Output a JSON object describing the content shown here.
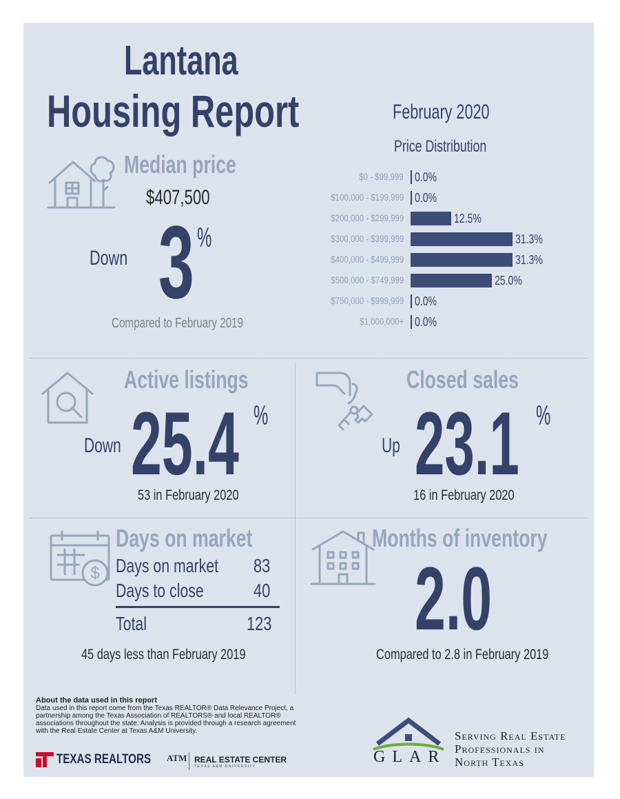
{
  "title": {
    "line1": "Lantana",
    "line2": "Housing Report"
  },
  "date": "February 2020",
  "median_price": {
    "header": "Median price",
    "value": "$407,500",
    "direction": "Down",
    "change": "3",
    "percent": "%",
    "comparison": "Compared to February 2019"
  },
  "chart_data": {
    "type": "bar",
    "title": "Price Distribution",
    "categories": [
      "$0 - $99,999",
      "$100,000 - $199,999",
      "$200,000 - $299,999",
      "$300,000 - $399,999",
      "$400,000 - $499,999",
      "$500,000 - $749,999",
      "$750,000 - $999,999",
      "$1,000,000+"
    ],
    "values": [
      0.0,
      0.0,
      12.5,
      31.3,
      31.3,
      25.0,
      0.0,
      0.0
    ],
    "value_labels": [
      "0.0%",
      "0.0%",
      "12.5%",
      "31.3%",
      "31.3%",
      "25.0%",
      "0.0%",
      "0.0%"
    ],
    "orientation": "horizontal",
    "xlim": [
      0,
      31.3
    ],
    "color": "#3d4d78"
  },
  "active_listings": {
    "header": "Active listings",
    "direction": "Down",
    "change": "25.4",
    "percent": "%",
    "detail": "53 in February 2020"
  },
  "closed_sales": {
    "header": "Closed sales",
    "direction": "Up",
    "change": "23.1",
    "percent": "%",
    "detail": "16 in February 2020"
  },
  "days_on_market": {
    "header": "Days on market",
    "rows": [
      {
        "label": "Days on market",
        "value": "83"
      },
      {
        "label": "Days to close",
        "value": "40"
      }
    ],
    "total_label": "Total",
    "total_value": "123",
    "detail": "45 days less than February 2019"
  },
  "months_inventory": {
    "header": "Months of inventory",
    "value": "2.0",
    "detail": "Compared to 2.8 in February 2019"
  },
  "about": {
    "heading": "About the data used in this report",
    "lines": [
      "Data used in this report come from the Texas REALTOR® Data Relevance Project, a",
      "partnership among the Texas Association of REALTORS® and local REALTOR®",
      "associations throughout the state. Analysis is provided through a research agreement",
      "with the Real Estate Center at Texas A&M University."
    ]
  },
  "logos": {
    "texas_realtors": "TEXAS REALTORS",
    "atm": "ATM",
    "rec_line1": "REAL ESTATE CENTER",
    "rec_line2": "TEXAS A&M UNIVERSITY",
    "glar": "GLAR",
    "tagline": [
      "Serving Real Estate",
      "Professionals in",
      "North Texas"
    ]
  },
  "colors": {
    "navy": "#34426a",
    "steel": "#96a6bd",
    "background": "#dde3ec",
    "texas_red": "#c8102e",
    "glar_green": "#6fa843"
  }
}
